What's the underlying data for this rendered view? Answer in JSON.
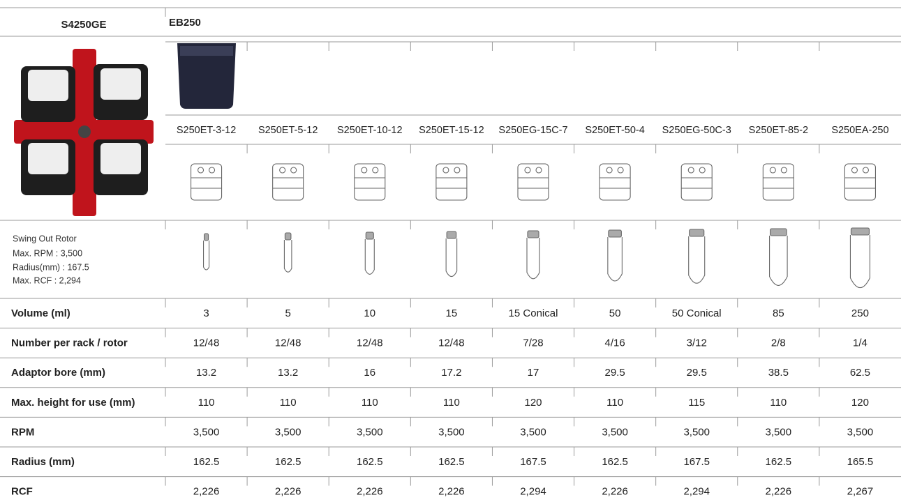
{
  "header": {
    "rotor_model": "S4250GE",
    "bucket_model": "EB250"
  },
  "adaptors": [
    "S250ET-3-12",
    "S250ET-5-12",
    "S250ET-10-12",
    "S250ET-15-12",
    "S250EG-15C-7",
    "S250ET-50-4",
    "S250EG-50C-3",
    "S250ET-85-2",
    "S250EA-250"
  ],
  "rotor_info": [
    "Swing Out Rotor",
    "Max. RPM : 3,500",
    "Radius(mm) : 167.5",
    "Max. RCF : 2,294"
  ],
  "rows": [
    {
      "label": "Volume (ml)",
      "values": [
        "3",
        "5",
        "10",
        "15",
        "15 Conical",
        "50",
        "50 Conical",
        "85",
        "250"
      ]
    },
    {
      "label": "Number per rack / rotor",
      "values": [
        "12/48",
        "12/48",
        "12/48",
        "12/48",
        "7/28",
        "4/16",
        "3/12",
        "2/8",
        "1/4"
      ]
    },
    {
      "label": "Adaptor bore (mm)",
      "values": [
        "13.2",
        "13.2",
        "16",
        "17.2",
        "17",
        "29.5",
        "29.5",
        "38.5",
        "62.5"
      ]
    },
    {
      "label": "Max. height for use (mm)",
      "values": [
        "110",
        "110",
        "110",
        "110",
        "120",
        "110",
        "115",
        "110",
        "120"
      ]
    },
    {
      "label": "RPM",
      "values": [
        "3,500",
        "3,500",
        "3,500",
        "3,500",
        "3,500",
        "3,500",
        "3,500",
        "3,500",
        "3,500"
      ]
    },
    {
      "label": "Radius (mm)",
      "values": [
        "162.5",
        "162.5",
        "162.5",
        "162.5",
        "167.5",
        "162.5",
        "167.5",
        "162.5",
        "165.5"
      ]
    },
    {
      "label": "RCF",
      "values": [
        "2,226",
        "2,226",
        "2,226",
        "2,226",
        "2,294",
        "2,226",
        "2,294",
        "2,226",
        "2,267"
      ]
    }
  ]
}
